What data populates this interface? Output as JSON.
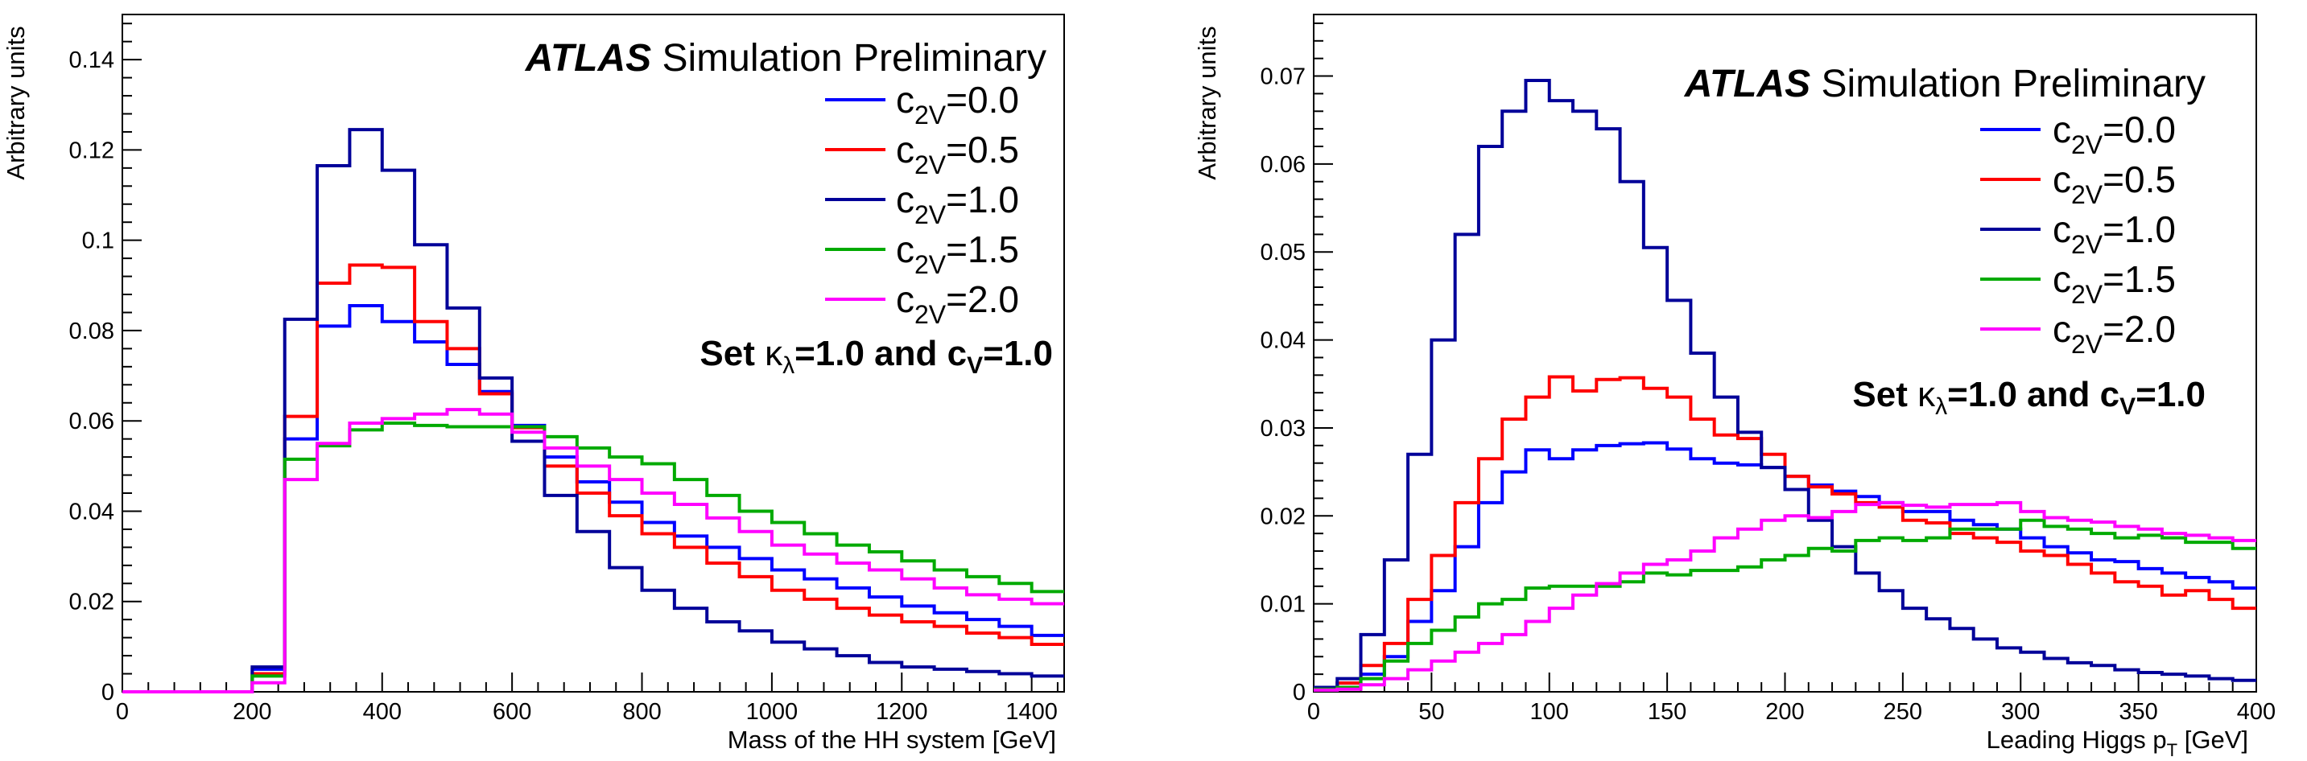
{
  "chart_data": [
    {
      "type": "line",
      "step": true,
      "ylabel": "Arbitrary units",
      "xlabel": "Mass of the HH system [GeV]",
      "xlim": [
        0,
        1450
      ],
      "ylim": [
        0,
        0.15
      ],
      "xticks": [
        0,
        200,
        400,
        600,
        800,
        1000,
        1200,
        1400
      ],
      "xtick_labels": [
        "0",
        "200",
        "400",
        "600",
        "800",
        "1000",
        "1200",
        "1400"
      ],
      "yticks": [
        0,
        0.02,
        0.04,
        0.06,
        0.08,
        0.1,
        0.12,
        0.14
      ],
      "ytick_labels": [
        "0",
        "0.02",
        "0.04",
        "0.06",
        "0.08",
        "0.1",
        "0.12",
        "0.14"
      ],
      "annotation": {
        "atlas": "ATLAS",
        "rest": " Simulation Preliminary"
      },
      "set_label": {
        "pre": "Set ",
        "kappa": "κ",
        "kappa_sub": "λ",
        "mid": "=1.0 and c",
        "cv_sub": "V",
        "post": "=1.0"
      },
      "legend_position": "top-right",
      "bin_edges": [
        0,
        50,
        100,
        150,
        200,
        250,
        300,
        350,
        400,
        450,
        500,
        550,
        600,
        650,
        700,
        750,
        800,
        850,
        900,
        950,
        1000,
        1050,
        1100,
        1150,
        1200,
        1250,
        1300,
        1350,
        1400,
        1450
      ],
      "series": [
        {
          "name_main": "c",
          "name_sub": "2V",
          "name_value": "=0.0",
          "color": "#0000ff",
          "values": [
            0,
            0,
            0,
            0,
            0.005,
            0.056,
            0.081,
            0.0855,
            0.082,
            0.0775,
            0.0725,
            0.0665,
            0.059,
            0.052,
            0.0465,
            0.042,
            0.0375,
            0.0345,
            0.032,
            0.0295,
            0.027,
            0.025,
            0.023,
            0.021,
            0.019,
            0.0175,
            0.016,
            0.0145,
            0.0125
          ]
        },
        {
          "name_main": "c",
          "name_sub": "2V",
          "name_value": "=0.5",
          "color": "#ff0000",
          "values": [
            0,
            0,
            0,
            0,
            0.004,
            0.061,
            0.0905,
            0.0945,
            0.094,
            0.082,
            0.076,
            0.066,
            0.0585,
            0.05,
            0.044,
            0.039,
            0.035,
            0.032,
            0.0285,
            0.0255,
            0.0225,
            0.0205,
            0.0185,
            0.017,
            0.0155,
            0.0145,
            0.013,
            0.012,
            0.0105
          ]
        },
        {
          "name_main": "c",
          "name_sub": "2V",
          "name_value": "=1.0",
          "color": "#000099",
          "values": [
            0,
            0,
            0,
            0,
            0.0055,
            0.0825,
            0.1165,
            0.1245,
            0.1155,
            0.099,
            0.085,
            0.0695,
            0.0555,
            0.0435,
            0.0355,
            0.0275,
            0.0225,
            0.0185,
            0.0155,
            0.0135,
            0.011,
            0.0095,
            0.008,
            0.0065,
            0.0055,
            0.005,
            0.0045,
            0.004,
            0.0035
          ]
        },
        {
          "name_main": "c",
          "name_sub": "2V",
          "name_value": "=1.5",
          "color": "#00aa00",
          "values": [
            0,
            0,
            0,
            0,
            0.0035,
            0.0515,
            0.0545,
            0.058,
            0.0595,
            0.059,
            0.0587,
            0.0587,
            0.0587,
            0.0565,
            0.054,
            0.052,
            0.0505,
            0.047,
            0.0435,
            0.04,
            0.0375,
            0.035,
            0.0325,
            0.031,
            0.029,
            0.027,
            0.0255,
            0.024,
            0.0222
          ]
        },
        {
          "name_main": "c",
          "name_sub": "2V",
          "name_value": "=2.0",
          "color": "#ff00ff",
          "values": [
            0,
            0,
            0,
            0,
            0.002,
            0.047,
            0.055,
            0.0595,
            0.0605,
            0.0615,
            0.0625,
            0.0615,
            0.0575,
            0.054,
            0.05,
            0.047,
            0.044,
            0.0415,
            0.0385,
            0.0355,
            0.0325,
            0.0305,
            0.0285,
            0.027,
            0.025,
            0.023,
            0.0215,
            0.0205,
            0.0195
          ]
        }
      ]
    },
    {
      "type": "line",
      "step": true,
      "ylabel": "Arbitrary units",
      "xlabel_main": "Leading Higgs p",
      "xlabel_sub": "T",
      "xlabel_post": " [GeV]",
      "xlim": [
        0,
        400
      ],
      "ylim": [
        0,
        0.077
      ],
      "xticks": [
        0,
        50,
        100,
        150,
        200,
        250,
        300,
        350,
        400
      ],
      "xtick_labels": [
        "0",
        "50",
        "100",
        "150",
        "200",
        "250",
        "300",
        "350",
        "400"
      ],
      "yticks": [
        0,
        0.01,
        0.02,
        0.03,
        0.04,
        0.05,
        0.06,
        0.07
      ],
      "ytick_labels": [
        "0",
        "0.01",
        "0.02",
        "0.03",
        "0.04",
        "0.05",
        "0.06",
        "0.07"
      ],
      "annotation": {
        "atlas": "ATLAS",
        "rest": " Simulation Preliminary"
      },
      "set_label": {
        "pre": "Set ",
        "kappa": "κ",
        "kappa_sub": "λ",
        "mid": "=1.0 and c",
        "cv_sub": "V",
        "post": "=1.0"
      },
      "legend_position": "top-right",
      "bin_edges": [
        0,
        10,
        20,
        30,
        40,
        50,
        60,
        70,
        80,
        90,
        100,
        110,
        120,
        130,
        140,
        150,
        160,
        170,
        180,
        190,
        200,
        210,
        220,
        230,
        240,
        250,
        260,
        270,
        280,
        290,
        300,
        310,
        320,
        330,
        340,
        350,
        360,
        370,
        380,
        390,
        400
      ],
      "series": [
        {
          "name_main": "c",
          "name_sub": "2V",
          "name_value": "=0.0",
          "color": "#0000ff",
          "values": [
            0.0005,
            0.001,
            0.002,
            0.004,
            0.008,
            0.0115,
            0.0165,
            0.0215,
            0.025,
            0.0275,
            0.0265,
            0.0275,
            0.028,
            0.0282,
            0.0283,
            0.0276,
            0.0265,
            0.026,
            0.0258,
            0.0255,
            0.0245,
            0.0235,
            0.0228,
            0.0222,
            0.0215,
            0.0205,
            0.0205,
            0.0195,
            0.019,
            0.0185,
            0.0175,
            0.0165,
            0.0158,
            0.015,
            0.0148,
            0.014,
            0.0135,
            0.013,
            0.0125,
            0.0118
          ]
        },
        {
          "name_main": "c",
          "name_sub": "2V",
          "name_value": "=0.5",
          "color": "#ff0000",
          "values": [
            0.0005,
            0.001,
            0.003,
            0.0055,
            0.0105,
            0.0155,
            0.0215,
            0.0265,
            0.031,
            0.0335,
            0.0358,
            0.0342,
            0.0355,
            0.0357,
            0.0345,
            0.0335,
            0.031,
            0.0292,
            0.0288,
            0.027,
            0.0245,
            0.0233,
            0.0225,
            0.0215,
            0.021,
            0.0195,
            0.0192,
            0.018,
            0.0175,
            0.017,
            0.016,
            0.0155,
            0.0145,
            0.0135,
            0.0125,
            0.012,
            0.011,
            0.0115,
            0.0105,
            0.0095
          ]
        },
        {
          "name_main": "c",
          "name_sub": "2V",
          "name_value": "=1.0",
          "color": "#000099",
          "values": [
            0.0005,
            0.0015,
            0.0065,
            0.015,
            0.027,
            0.04,
            0.052,
            0.062,
            0.066,
            0.0695,
            0.0672,
            0.066,
            0.064,
            0.058,
            0.0505,
            0.0445,
            0.0385,
            0.0335,
            0.0295,
            0.0255,
            0.023,
            0.0195,
            0.0165,
            0.0135,
            0.0115,
            0.0095,
            0.0083,
            0.0072,
            0.006,
            0.005,
            0.0045,
            0.0038,
            0.0033,
            0.003,
            0.0025,
            0.0022,
            0.002,
            0.0018,
            0.0015,
            0.0013
          ]
        },
        {
          "name_main": "c",
          "name_sub": "2V",
          "name_value": "=1.5",
          "color": "#00aa00",
          "values": [
            0.0003,
            0.0005,
            0.0015,
            0.0035,
            0.0055,
            0.007,
            0.0085,
            0.01,
            0.0105,
            0.0118,
            0.012,
            0.012,
            0.012,
            0.0125,
            0.0135,
            0.0133,
            0.0138,
            0.0138,
            0.0142,
            0.015,
            0.0155,
            0.0163,
            0.016,
            0.0172,
            0.0175,
            0.0172,
            0.0175,
            0.0185,
            0.0185,
            0.0185,
            0.0195,
            0.0188,
            0.0185,
            0.018,
            0.0175,
            0.0178,
            0.0175,
            0.017,
            0.017,
            0.0163
          ]
        },
        {
          "name_main": "c",
          "name_sub": "2V",
          "name_value": "=2.0",
          "color": "#ff00ff",
          "values": [
            0.0002,
            0.0003,
            0.0008,
            0.0015,
            0.0025,
            0.0035,
            0.0045,
            0.0055,
            0.0065,
            0.008,
            0.0095,
            0.011,
            0.0123,
            0.0135,
            0.0145,
            0.015,
            0.016,
            0.0175,
            0.0185,
            0.0195,
            0.02,
            0.0198,
            0.0205,
            0.0213,
            0.0215,
            0.0212,
            0.021,
            0.0213,
            0.0213,
            0.0215,
            0.0205,
            0.0198,
            0.0195,
            0.0193,
            0.0188,
            0.0185,
            0.018,
            0.0178,
            0.0175,
            0.0172
          ]
        }
      ]
    }
  ]
}
